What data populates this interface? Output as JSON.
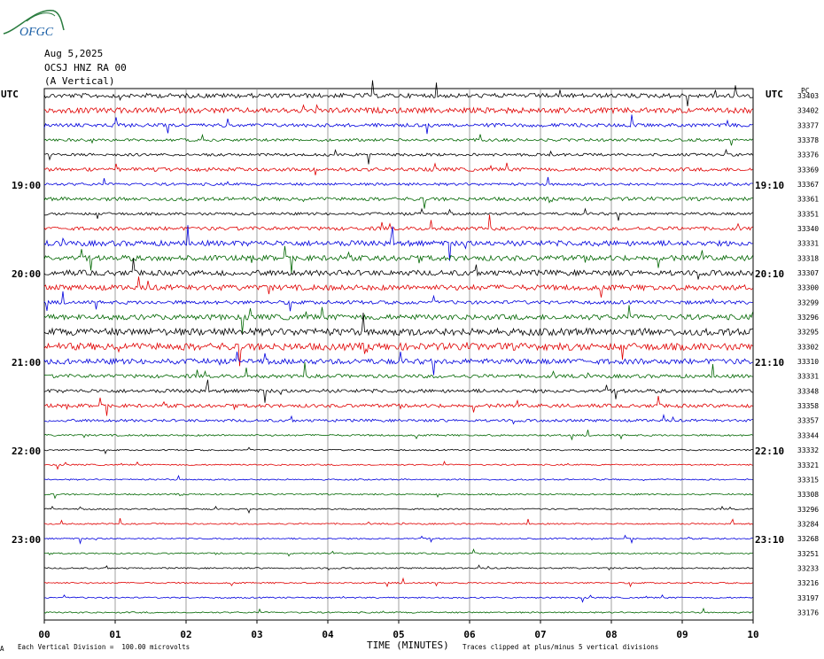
{
  "logo": {
    "text": "OFGC",
    "color": "#2a7c3f",
    "text_color": "#1a5fa6"
  },
  "header": {
    "date": "Aug 5,2025",
    "station": "OCSJ HNZ RA 00",
    "component": "(A Vertical)"
  },
  "left_tz": "UTC",
  "right_tz": "UTC",
  "right_corner": "PC",
  "time_labels_left": [
    "19:00",
    "20:00",
    "21:00",
    "22:00",
    "23:00"
  ],
  "time_labels_right": [
    "19:10",
    "20:10",
    "21:10",
    "22:10",
    "23:10"
  ],
  "footer": {
    "scale_note": "Each Vertical Division =  100.00 microvolts",
    "axis_title": "TIME (MINUTES)",
    "clip_note": "Traces clipped at plus/minus 5 vertical divisions",
    "corner_mark": "A"
  },
  "chart_data": {
    "type": "line",
    "title": "OCSJ HNZ RA 00 (A Vertical)",
    "xlabel": "TIME (MINUTES)",
    "xlim": [
      0,
      10
    ],
    "x_ticks": [
      "00",
      "01",
      "02",
      "03",
      "04",
      "05",
      "06",
      "07",
      "08",
      "09",
      "10"
    ],
    "trace_colors": [
      "#000000",
      "#e00000",
      "#0000dd",
      "#006600"
    ],
    "trace_count": 36,
    "right_values": [
      "33403",
      "33402",
      "33377",
      "33378",
      "33376",
      "33369",
      "33367",
      "33361",
      "33351",
      "33340",
      "33331",
      "33318",
      "33307",
      "33300",
      "33299",
      "33296",
      "33295",
      "33302",
      "33310",
      "33331",
      "33348",
      "33358",
      "33357",
      "33344",
      "33332",
      "33321",
      "33315",
      "33308",
      "33296",
      "33284",
      "33268",
      "33251",
      "33233",
      "33216",
      "33197",
      "33176"
    ],
    "noise_levels": [
      2.5,
      3,
      2,
      1.5,
      1.5,
      2,
      1.5,
      2,
      1.5,
      2,
      3,
      3,
      3,
      3,
      2,
      3,
      4,
      4,
      3,
      2,
      2,
      2,
      1.5,
      1,
      0.8,
      0.8,
      0.8,
      0.8,
      0.8,
      0.8,
      0.8,
      0.8,
      0.8,
      0.8,
      0.8,
      0.8
    ],
    "grid": true
  }
}
